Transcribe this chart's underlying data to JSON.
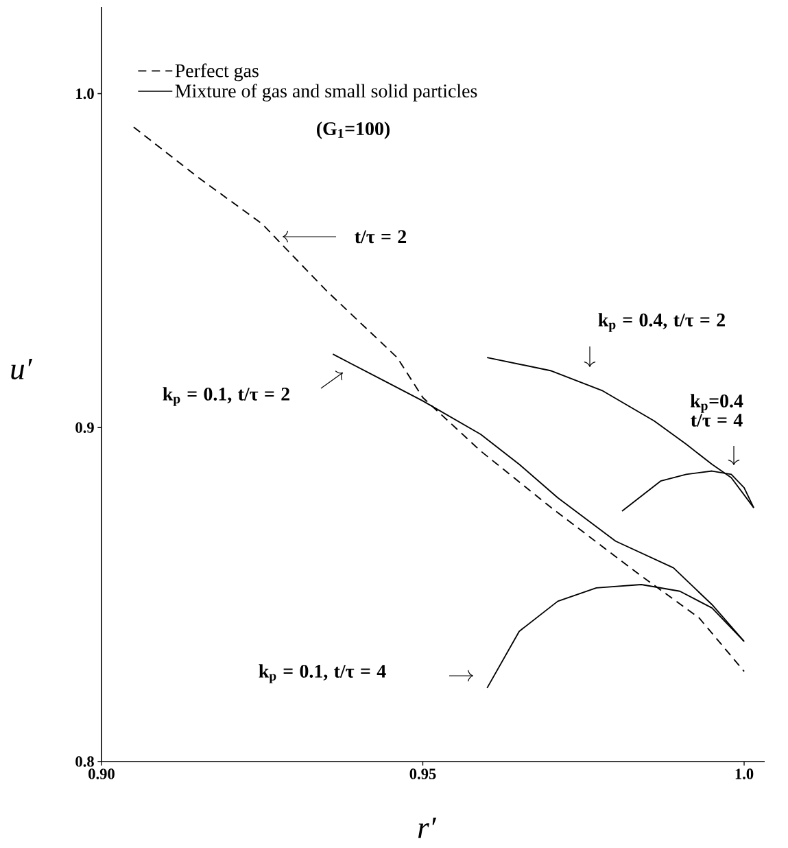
{
  "chart_data": {
    "type": "line",
    "xlabel": "r′",
    "ylabel": "u′",
    "xlim": [
      0.9,
      1.0032
    ],
    "ylim": [
      0.8,
      1.026
    ],
    "xticks": [
      {
        "value": 0.9,
        "label": "0.90"
      },
      {
        "value": 0.95,
        "label": "0.95"
      },
      {
        "value": 1.0,
        "label": "1.0"
      }
    ],
    "yticks": [
      {
        "value": 0.8,
        "label": "0.8"
      },
      {
        "value": 0.9,
        "label": "0.9"
      },
      {
        "value": 1.0,
        "label": "1.0"
      }
    ],
    "legend": "top left",
    "marker": "none",
    "series": [
      {
        "name": "Perfect gas",
        "color": "#000000",
        "line_style": "dashed",
        "x": [
          0.905,
          0.915,
          0.925,
          0.935,
          0.946,
          0.95,
          0.959,
          0.97,
          0.983,
          0.993,
          1.0
        ],
        "values": [
          0.99,
          0.975,
          0.961,
          0.941,
          0.921,
          0.909,
          0.893,
          0.876,
          0.857,
          0.843,
          0.827
        ]
      },
      {
        "name": "Mixture of gas and small solid particles",
        "color": "#000000",
        "line_style": "solid",
        "x": [
          0.936,
          0.944,
          0.95,
          0.959,
          0.965,
          0.971,
          0.98,
          0.989,
          0.995,
          1.0
        ],
        "values": [
          0.922,
          0.914,
          0.908,
          0.898,
          0.889,
          0.879,
          0.866,
          0.858,
          0.847,
          0.836
        ]
      },
      {
        "color": "#000000",
        "line_style": "solid",
        "x": [
          0.96,
          0.97,
          0.978,
          0.986,
          0.991,
          0.995,
          0.998,
          1.0015
        ],
        "values": [
          0.921,
          0.917,
          0.911,
          0.902,
          0.895,
          0.889,
          0.885,
          0.876
        ]
      },
      {
        "color": "#000000",
        "line_style": "solid",
        "x": [
          0.981,
          0.987,
          0.991,
          0.995,
          0.998,
          1.0,
          1.0015
        ],
        "values": [
          0.875,
          0.884,
          0.886,
          0.887,
          0.886,
          0.882,
          0.876
        ]
      },
      {
        "color": "#000000",
        "line_style": "solid",
        "x": [
          0.96,
          0.965,
          0.971,
          0.977,
          0.984,
          0.99,
          0.995,
          1.0
        ],
        "values": [
          0.822,
          0.839,
          0.848,
          0.852,
          0.853,
          0.851,
          0.846,
          0.836
        ]
      }
    ],
    "annotations": [
      "t/τ = 2",
      "k$_{p}$ = 0.1, t/τ = 2",
      "k$_{p}$ = 0.4, t/τ = 2",
      "k$_{p}$=0.4 t/τ = 4",
      "k$_{p}$ = 0.1, t/τ = 4",
      "(G$_{1}$=100)"
    ]
  }
}
